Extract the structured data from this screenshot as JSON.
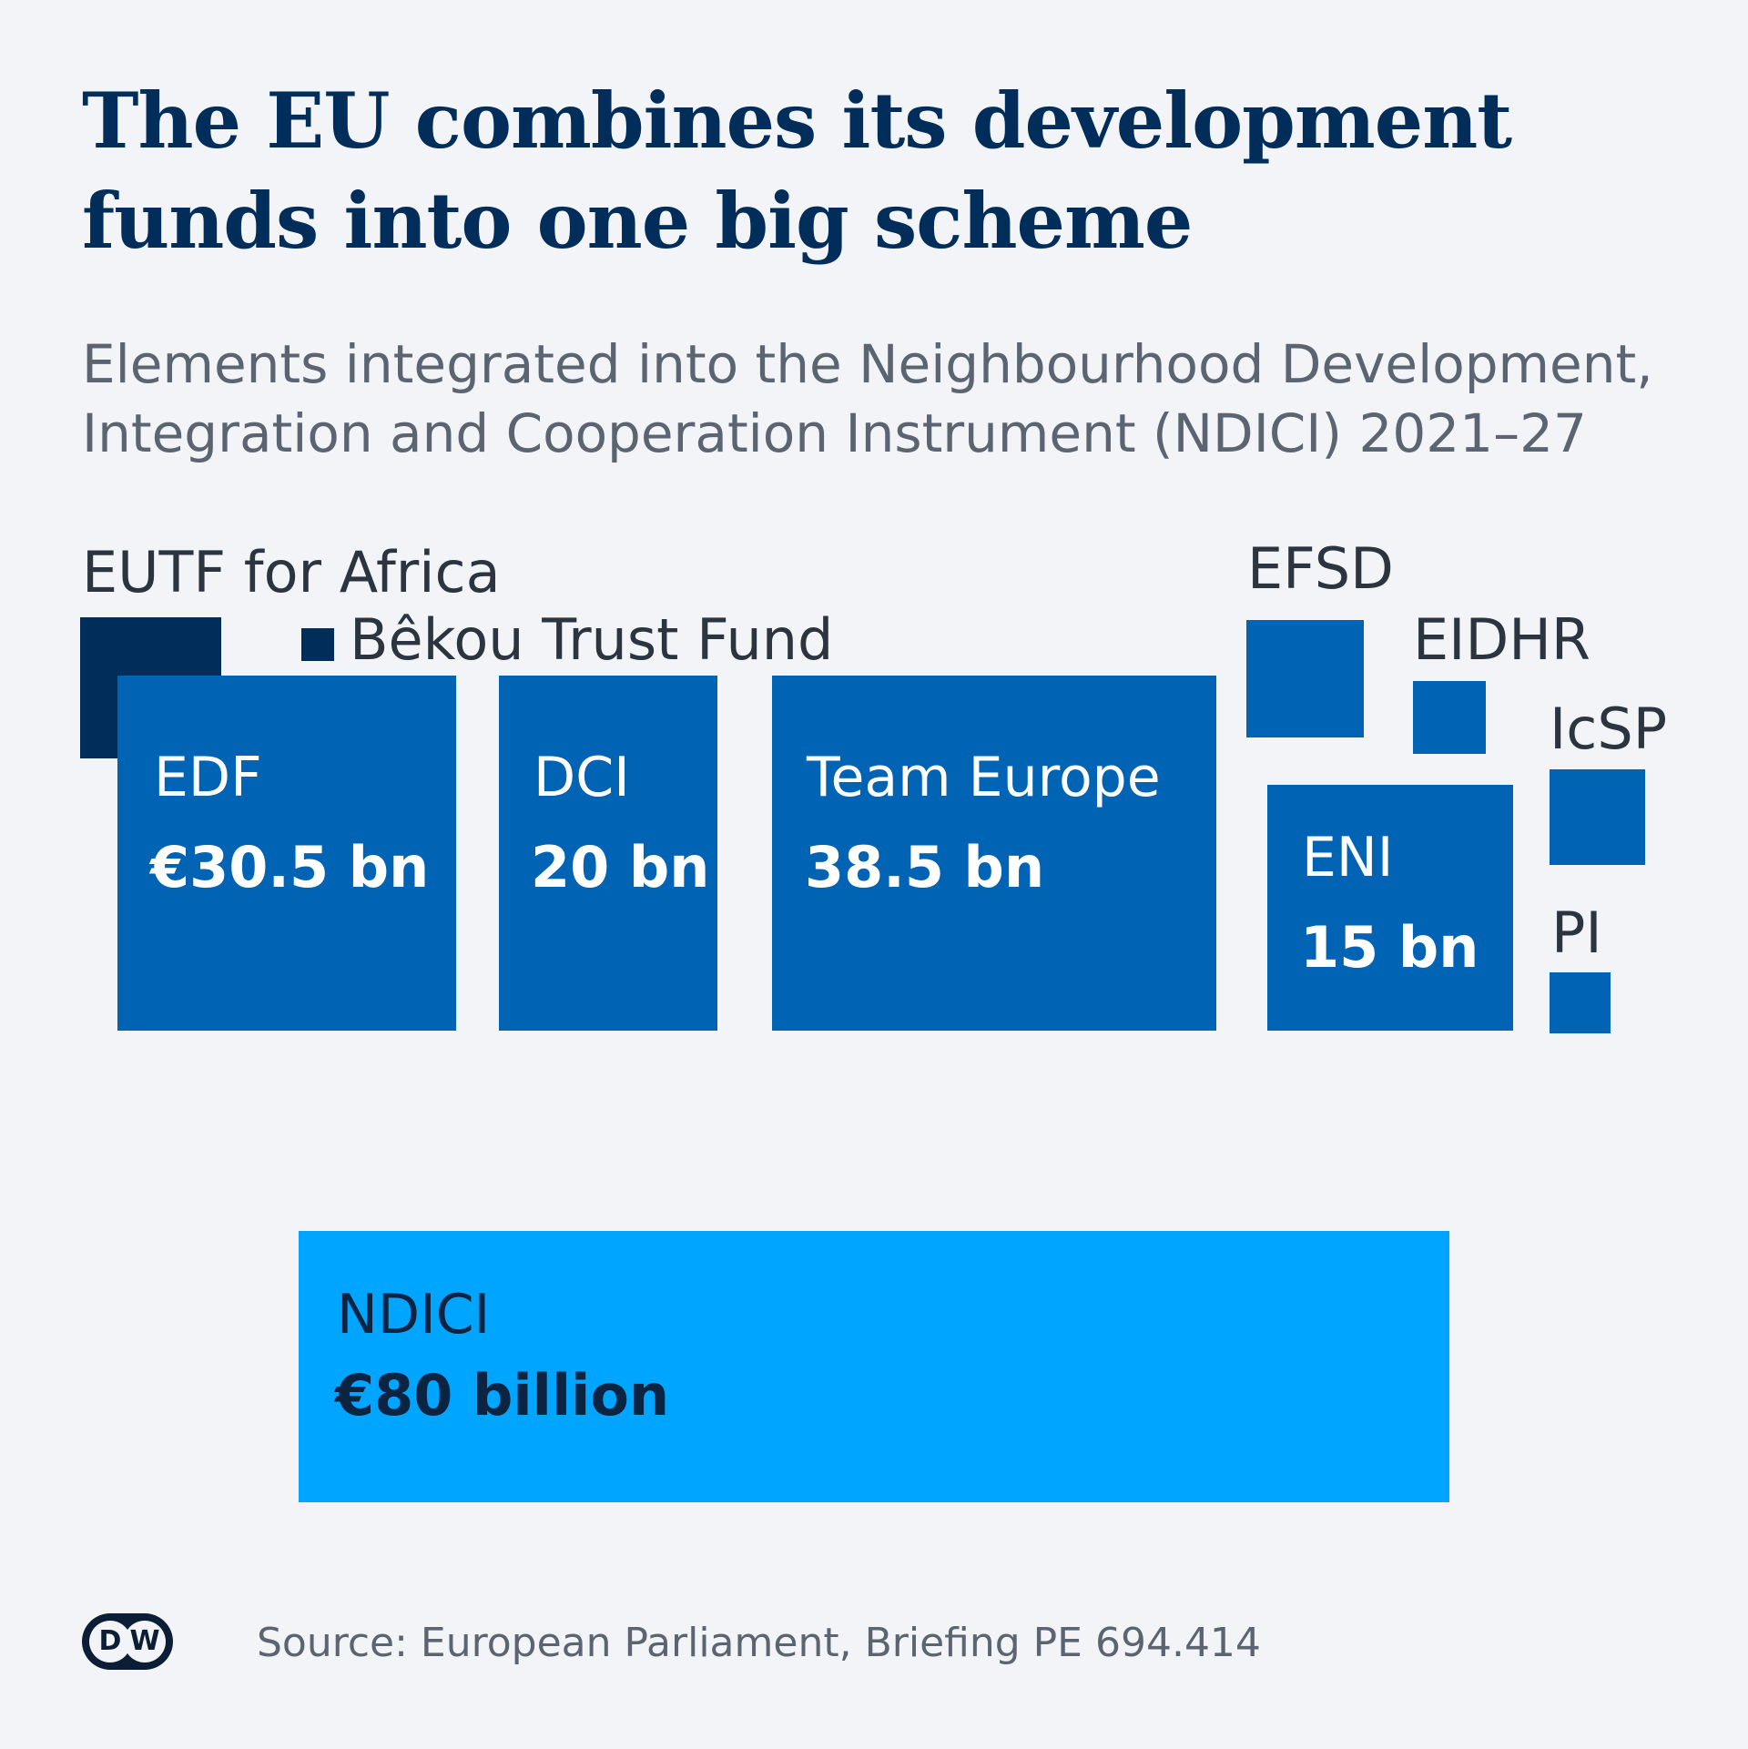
{
  "title_line1": "The EU combines its development",
  "title_line2": "funds into one big scheme",
  "subtitle_line1": "Elements integrated into the Neighbourhood Development,",
  "subtitle_line2": "Integration and Cooperation Instrument (NDICI) 2021–27",
  "source": "Source: European Parliament, Briefing PE 694.414",
  "logo": {
    "left": "D",
    "right": "W"
  },
  "colors": {
    "component": "#0063b3",
    "eutf": "#002d5a",
    "ndici": "#00a5ff",
    "background": "#f2f4f7"
  },
  "chart_data": {
    "type": "area-squares",
    "title": "The EU combines its development funds into one big scheme",
    "subtitle": "Elements integrated into the Neighbourhood Development, Integration and Cooperation Instrument (NDICI) 2021–27",
    "unit": "€ billion",
    "components": [
      {
        "name": "EUTF for Africa",
        "label": "EUTF for Africa",
        "value": 5,
        "value_label": ""
      },
      {
        "name": "Bêkou Trust Fund",
        "label": "Bêkou Trust Fund",
        "value": 0.4,
        "value_label": ""
      },
      {
        "name": "EDF",
        "label": "EDF",
        "value": 30.5,
        "value_label": "€30.5 bn"
      },
      {
        "name": "DCI",
        "label": "DCI",
        "value": 20,
        "value_label": "20 bn"
      },
      {
        "name": "Team Europe",
        "label": "Team Europe",
        "value": 38.5,
        "value_label": "38.5 bn"
      },
      {
        "name": "EFSD",
        "label": "EFSD",
        "value": 3.5,
        "value_label": ""
      },
      {
        "name": "EIDHR",
        "label": "EIDHR",
        "value": 1.3,
        "value_label": ""
      },
      {
        "name": "IcSP",
        "label": "IcSP",
        "value": 2.3,
        "value_label": ""
      },
      {
        "name": "ENI",
        "label": "ENI",
        "value": 15,
        "value_label": "15 bn"
      },
      {
        "name": "PI",
        "label": "PI",
        "value": 1,
        "value_label": ""
      }
    ],
    "total": {
      "name": "NDICI",
      "label": "NDICI",
      "value": 80,
      "value_label": "€80 billion"
    }
  }
}
